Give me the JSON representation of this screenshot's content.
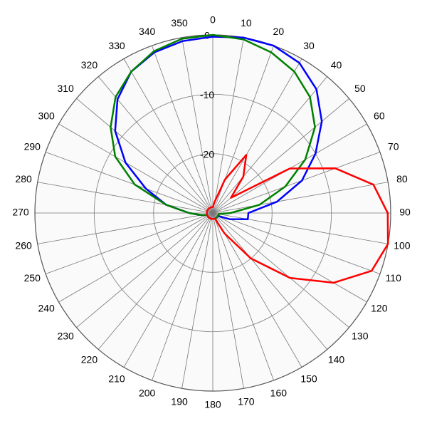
{
  "chart_data": {
    "type": "polar",
    "x": [
      0,
      10,
      20,
      30,
      40,
      50,
      60,
      70,
      80,
      90,
      100,
      110,
      120,
      130,
      140,
      150,
      160,
      170,
      180,
      190,
      200,
      210,
      220,
      230,
      240,
      250,
      260,
      270,
      280,
      290,
      300,
      310,
      320,
      330,
      340,
      350
    ],
    "rlim": [
      -30,
      0
    ],
    "rticks": [
      0,
      -10,
      -20
    ],
    "grid": true,
    "series": [
      {
        "color": "#0000ff",
        "values": [
          -0.3,
          0,
          0,
          -0.8,
          -2.8,
          -6,
          -10,
          -14,
          -19,
          -24,
          -24,
          -27,
          -29,
          -29,
          -29,
          -29,
          -29,
          -29,
          -29,
          -29,
          -29,
          -29,
          -29,
          -29,
          -29,
          -29,
          -28,
          -26,
          -22,
          -18,
          -13,
          -8.5,
          -5,
          -2.5,
          -1.2,
          -0.6
        ]
      },
      {
        "color": "#008000",
        "values": [
          0,
          -0.3,
          -1.2,
          -2.5,
          -4.5,
          -7.5,
          -12,
          -17,
          -22,
          -27,
          -29,
          -29,
          -29,
          -29,
          -29,
          -29,
          -29,
          -29,
          -29,
          -29,
          -29,
          -29,
          -29,
          -29,
          -29,
          -29,
          -28,
          -26,
          -22,
          -16,
          -11,
          -7.5,
          -4.5,
          -2.5,
          -1,
          -0.2
        ]
      },
      {
        "color": "#ff0000",
        "values": [
          -29,
          -28,
          -24,
          -18.7,
          -22,
          -26,
          -15,
          -8,
          -2.5,
          -0.5,
          0,
          -1.5,
          -6.5,
          -13,
          -20,
          -26,
          -29,
          -29,
          -29,
          -29,
          -29,
          -29,
          -29,
          -29,
          -29,
          -29,
          -29,
          -29,
          -29,
          -29,
          -29,
          -29,
          -29,
          -29,
          -29,
          -29
        ]
      }
    ]
  }
}
